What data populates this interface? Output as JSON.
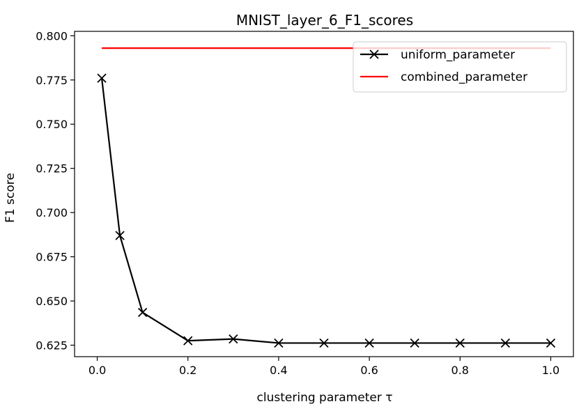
{
  "chart_data": {
    "type": "line",
    "title": "MNIST_layer_6_F1_scores",
    "xlabel": "clustering parameter τ",
    "ylabel": "F1 score",
    "xlim": [
      -0.05,
      1.05
    ],
    "ylim": [
      0.6185,
      0.8025
    ],
    "xticks": [
      0.0,
      0.2,
      0.4,
      0.6,
      0.8,
      1.0
    ],
    "xtick_labels": [
      "0.0",
      "0.2",
      "0.4",
      "0.6",
      "0.8",
      "1.0"
    ],
    "yticks": [
      0.625,
      0.65,
      0.675,
      0.7,
      0.725,
      0.75,
      0.775,
      0.8
    ],
    "ytick_labels": [
      "0.625",
      "0.650",
      "0.675",
      "0.700",
      "0.725",
      "0.750",
      "0.775",
      "0.800"
    ],
    "grid": false,
    "legend_position": "top-right",
    "series": [
      {
        "name": "uniform_parameter",
        "color": "#000000",
        "marker": "x",
        "x": [
          0.01,
          0.05,
          0.1,
          0.2,
          0.3,
          0.4,
          0.5,
          0.6,
          0.7,
          0.8,
          0.9,
          1.0
        ],
        "y": [
          0.776,
          0.687,
          0.6435,
          0.6275,
          0.6285,
          0.6262,
          0.6262,
          0.6262,
          0.6262,
          0.6262,
          0.6262,
          0.6262
        ]
      },
      {
        "name": "combined_parameter",
        "color": "#ff0000",
        "marker": "none",
        "x": [
          0.01,
          1.0
        ],
        "y": [
          0.793,
          0.793
        ]
      }
    ]
  }
}
